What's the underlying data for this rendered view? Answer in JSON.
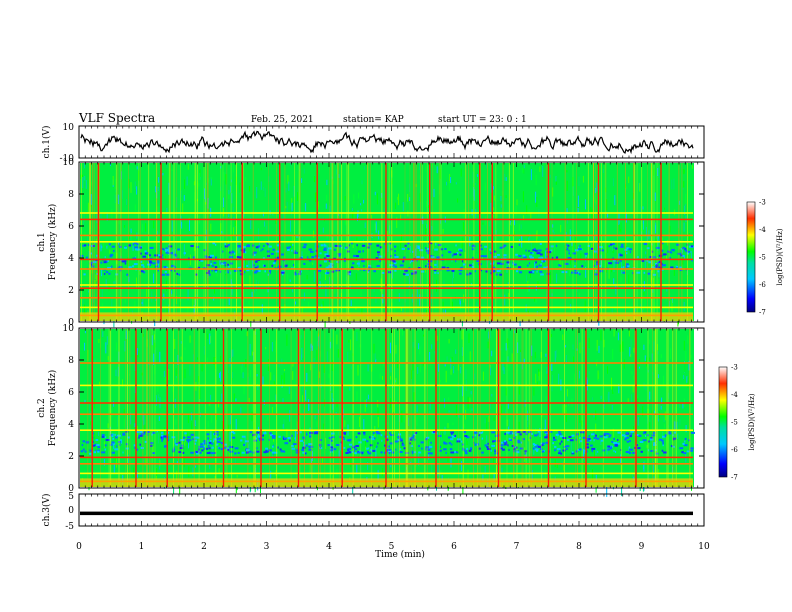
{
  "header": {
    "title": "VLF Spectra",
    "date": "Feb. 25, 2021",
    "station": "station= KAP",
    "start_time": "start UT =   23: 0  : 1"
  },
  "chart_data": [
    {
      "type": "line",
      "name": "panel-ch1-waveform",
      "ylabel": "ch.1(V)",
      "ylim": [
        -10,
        10
      ],
      "yticks": [
        "10",
        "-10"
      ],
      "xlim": [
        0,
        10
      ],
      "description_of_series": "continuous noisy voltage trace varying roughly between -5 and 5 V",
      "series_color": "#000000"
    },
    {
      "type": "heatmap",
      "name": "panel-ch1-spectrogram",
      "ylabel": "ch.1\nFrequency (kHz)",
      "ylim": [
        0,
        10
      ],
      "yticks": [
        "0",
        "2",
        "4",
        "6",
        "8",
        "10"
      ],
      "xlim": [
        0,
        10
      ],
      "colorbar": {
        "label": "log(PSD)(V²/Hz)",
        "range": [
          -7,
          -3
        ],
        "ticks": [
          "-3",
          "-4",
          "-5",
          "-6",
          "-7"
        ]
      },
      "horizontal_bands_khz": [
        0.4,
        0.9,
        1.5,
        2.1,
        2.3,
        3.3,
        3.9,
        5.0,
        5.4,
        6.4,
        6.8
      ],
      "low_psd_band_khz": [
        3.0,
        5.0
      ],
      "strong_vertical_sferics_min": [
        0.3,
        1.3,
        2.6,
        3.2,
        3.8,
        4.9,
        5.6,
        6.4,
        6.6,
        7.5,
        8.3,
        9.3
      ]
    },
    {
      "type": "heatmap",
      "name": "panel-ch2-spectrogram",
      "ylabel": "ch.2\nFrequency (kHz)",
      "ylim": [
        0,
        10
      ],
      "yticks": [
        "0",
        "2",
        "4",
        "6",
        "8",
        "10"
      ],
      "xlim": [
        0,
        10
      ],
      "colorbar": {
        "label": "log(PSD)(V²/Hz)",
        "range": [
          -7,
          -3
        ],
        "ticks": [
          "-3",
          "-4",
          "-5",
          "-6",
          "-7"
        ]
      },
      "horizontal_bands_khz": [
        0.4,
        0.9,
        1.5,
        1.9,
        3.6,
        4.6,
        5.3,
        6.4,
        7.8
      ],
      "low_psd_band_khz": [
        2.2,
        3.6
      ],
      "strong_vertical_sferics_min": [
        0.2,
        0.9,
        1.4,
        2.3,
        2.9,
        3.5,
        4.2,
        4.9,
        5.7,
        6.7,
        7.5,
        8.1,
        8.9
      ]
    },
    {
      "type": "line",
      "name": "panel-ch3-waveform",
      "ylabel": "ch.3(V)",
      "ylim": [
        -5,
        5
      ],
      "yticks": [
        "5",
        "0",
        "-5"
      ],
      "xlim": [
        0,
        10
      ],
      "xlabel": "Time (min)",
      "xticks": [
        "0",
        "1",
        "2",
        "3",
        "4",
        "5",
        "6",
        "7",
        "8",
        "9",
        "10"
      ],
      "description_of_series": "dense oscillation around -1 V with amplitude about 0.5 V",
      "series_color": "#000000"
    }
  ]
}
